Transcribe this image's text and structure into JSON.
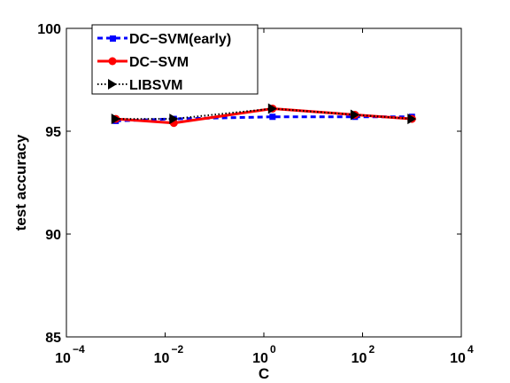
{
  "chart_data": {
    "type": "line",
    "title": "",
    "xlabel": "C",
    "ylabel": "test accuracy",
    "x_scale": "log",
    "xlim": [
      0.0001,
      10000
    ],
    "ylim": [
      85,
      100
    ],
    "x_ticks": [
      {
        "value": 0.0001,
        "base": "10",
        "exp": "−4"
      },
      {
        "value": 0.01,
        "base": "10",
        "exp": "−2"
      },
      {
        "value": 1,
        "base": "10",
        "exp": "0"
      },
      {
        "value": 100,
        "base": "10",
        "exp": "2"
      },
      {
        "value": 10000,
        "base": "10",
        "exp": "4"
      }
    ],
    "y_ticks": [
      85,
      90,
      95,
      100
    ],
    "grid": false,
    "legend_position": "top-left",
    "x": [
      0.001,
      0.015,
      1.5,
      70,
      1000
    ],
    "series": [
      {
        "name": "DC−SVM(early)",
        "color": "#0000ff",
        "line_style": "dashed",
        "marker": "square",
        "values": [
          95.5,
          95.6,
          95.7,
          95.7,
          95.7
        ]
      },
      {
        "name": "DC−SVM",
        "color": "#ff0000",
        "line_style": "solid",
        "marker": "circle",
        "values": [
          95.6,
          95.4,
          96.1,
          95.8,
          95.6
        ]
      },
      {
        "name": "LIBSVM",
        "color": "#000000",
        "line_style": "dotted",
        "marker": "triangle-right",
        "values": [
          95.6,
          95.6,
          96.1,
          95.8,
          95.6
        ]
      }
    ]
  }
}
